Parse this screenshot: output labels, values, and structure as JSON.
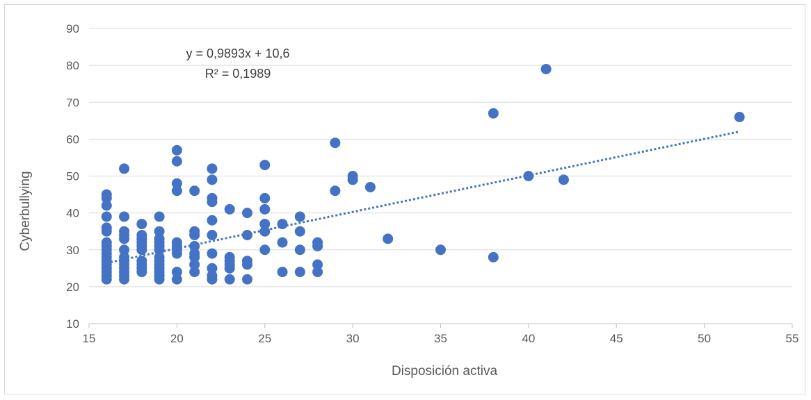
{
  "chart_data": {
    "type": "scatter",
    "title": "",
    "xlabel": "Disposición activa",
    "ylabel": "Cyberbullying",
    "xlim": [
      15,
      55
    ],
    "ylim": [
      10,
      90
    ],
    "x_ticks": [
      15,
      20,
      25,
      30,
      35,
      40,
      45,
      50,
      55
    ],
    "y_ticks": [
      10,
      20,
      30,
      40,
      50,
      60,
      70,
      80,
      90
    ],
    "grid": "horizontal",
    "marker_color": "#4472C4",
    "trendline": {
      "type": "linear",
      "slope": 0.9893,
      "intercept": 10.6,
      "x_range": [
        16,
        52
      ],
      "style": "dotted",
      "color": "#4472C4",
      "equation_label": "y = 0,9893x + 10,6",
      "r2_label": "R² = 0,1989"
    },
    "series": [
      {
        "points": [
          [
            16,
            22
          ],
          [
            16,
            23
          ],
          [
            16,
            24
          ],
          [
            16,
            25
          ],
          [
            16,
            26
          ],
          [
            16,
            27
          ],
          [
            16,
            28
          ],
          [
            16,
            29
          ],
          [
            16,
            30
          ],
          [
            16,
            31
          ],
          [
            16,
            32
          ],
          [
            16,
            35
          ],
          [
            16,
            36
          ],
          [
            16,
            39
          ],
          [
            16,
            42
          ],
          [
            16,
            44
          ],
          [
            16,
            45
          ],
          [
            17,
            22
          ],
          [
            17,
            23
          ],
          [
            17,
            24
          ],
          [
            17,
            25
          ],
          [
            17,
            26
          ],
          [
            17,
            27
          ],
          [
            17,
            28
          ],
          [
            17,
            30
          ],
          [
            17,
            33
          ],
          [
            17,
            34
          ],
          [
            17,
            35
          ],
          [
            17,
            39
          ],
          [
            17,
            52
          ],
          [
            18,
            24
          ],
          [
            18,
            25
          ],
          [
            18,
            26
          ],
          [
            18,
            27
          ],
          [
            18,
            30
          ],
          [
            18,
            31
          ],
          [
            18,
            32
          ],
          [
            18,
            33
          ],
          [
            18,
            34
          ],
          [
            18,
            37
          ],
          [
            19,
            22
          ],
          [
            19,
            23
          ],
          [
            19,
            24
          ],
          [
            19,
            25
          ],
          [
            19,
            26
          ],
          [
            19,
            27
          ],
          [
            19,
            28
          ],
          [
            19,
            30
          ],
          [
            19,
            31
          ],
          [
            19,
            32
          ],
          [
            19,
            33
          ],
          [
            19,
            35
          ],
          [
            19,
            39
          ],
          [
            20,
            22
          ],
          [
            20,
            24
          ],
          [
            20,
            29
          ],
          [
            20,
            30
          ],
          [
            20,
            31
          ],
          [
            20,
            32
          ],
          [
            20,
            46
          ],
          [
            20,
            48
          ],
          [
            20,
            54
          ],
          [
            20,
            57
          ],
          [
            21,
            24
          ],
          [
            21,
            26
          ],
          [
            21,
            28
          ],
          [
            21,
            29
          ],
          [
            21,
            31
          ],
          [
            21,
            34
          ],
          [
            21,
            35
          ],
          [
            21,
            46
          ],
          [
            22,
            22
          ],
          [
            22,
            23
          ],
          [
            22,
            25
          ],
          [
            22,
            29
          ],
          [
            22,
            34
          ],
          [
            22,
            38
          ],
          [
            22,
            43
          ],
          [
            22,
            44
          ],
          [
            22,
            49
          ],
          [
            22,
            52
          ],
          [
            23,
            22
          ],
          [
            23,
            25
          ],
          [
            23,
            26
          ],
          [
            23,
            27
          ],
          [
            23,
            28
          ],
          [
            23,
            41
          ],
          [
            24,
            22
          ],
          [
            24,
            26
          ],
          [
            24,
            27
          ],
          [
            24,
            34
          ],
          [
            24,
            40
          ],
          [
            25,
            30
          ],
          [
            25,
            35
          ],
          [
            25,
            37
          ],
          [
            25,
            41
          ],
          [
            25,
            44
          ],
          [
            25,
            53
          ],
          [
            26,
            24
          ],
          [
            26,
            32
          ],
          [
            26,
            37
          ],
          [
            27,
            24
          ],
          [
            27,
            30
          ],
          [
            27,
            35
          ],
          [
            27,
            39
          ],
          [
            28,
            24
          ],
          [
            28,
            26
          ],
          [
            28,
            31
          ],
          [
            28,
            32
          ],
          [
            29,
            46
          ],
          [
            29,
            59
          ],
          [
            30,
            49
          ],
          [
            30,
            50
          ],
          [
            31,
            47
          ],
          [
            32,
            33
          ],
          [
            35,
            30
          ],
          [
            38,
            28
          ],
          [
            38,
            67
          ],
          [
            40,
            50
          ],
          [
            41,
            79
          ],
          [
            42,
            49
          ],
          [
            52,
            66
          ]
        ]
      }
    ]
  }
}
